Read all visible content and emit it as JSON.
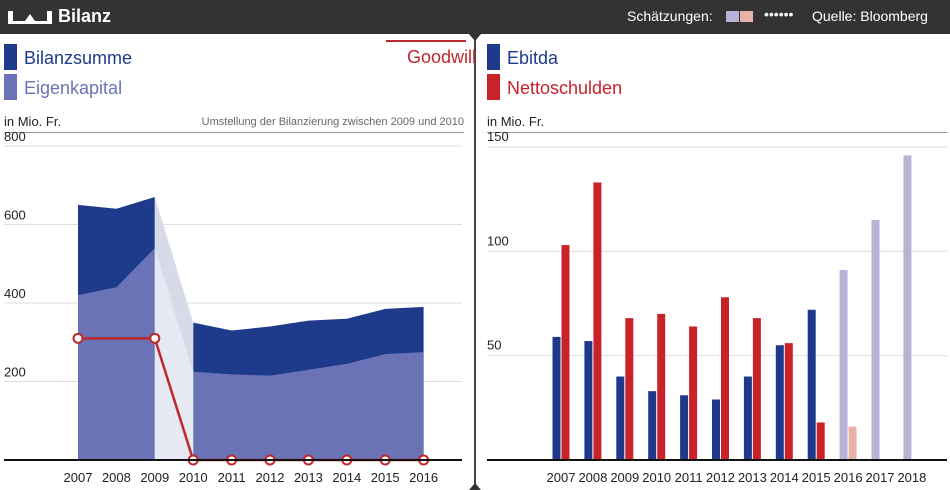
{
  "header": {
    "title": "Bilanz",
    "estimates_label": "Schätzungen:",
    "source": "Quelle: Bloomberg",
    "colors": {
      "background": "#333333",
      "estimate_blue": "#b6b3d9",
      "estimate_red": "#e8b1a9"
    }
  },
  "left_panel": {
    "legend": [
      {
        "label": "Bilanzsumme",
        "color": "#1e3a8a"
      },
      {
        "label": "Eigenkapital",
        "color": "#6a73b5"
      }
    ],
    "goodwill_label": "Goodwill",
    "unit": "in Mio. Fr.",
    "note": "Umstellung der Bilanzierung zwischen 2009 und 2010"
  },
  "right_panel": {
    "legend": [
      {
        "label": "Ebitda",
        "color": "#1e3a8a"
      },
      {
        "label": "Nettoschulden",
        "color": "#c8222a"
      }
    ],
    "unit": "in Mio. Fr."
  },
  "chart_data": [
    {
      "type": "area",
      "x": [
        "2007",
        "2008",
        "2009",
        "2010",
        "2011",
        "2012",
        "2013",
        "2014",
        "2015",
        "2016"
      ],
      "yticks": [
        200,
        400,
        600,
        800
      ],
      "ylim": [
        0,
        800
      ],
      "series": [
        {
          "name": "Bilanzsumme",
          "color": "#1e3a8a",
          "values": [
            650,
            640,
            670,
            350,
            330,
            340,
            355,
            360,
            385,
            390
          ]
        },
        {
          "name": "Eigenkapital",
          "color": "#6a73b5",
          "values": [
            420,
            440,
            540,
            225,
            218,
            215,
            230,
            245,
            270,
            275
          ]
        },
        {
          "name": "Goodwill",
          "type": "line",
          "color": "#c0272d",
          "values": [
            310,
            310,
            310,
            0,
            0,
            0,
            0,
            0,
            0,
            0
          ]
        }
      ]
    },
    {
      "type": "bar",
      "categories": [
        "2007",
        "2008",
        "2009",
        "2010",
        "2011",
        "2012",
        "2013",
        "2014",
        "2015",
        "2016",
        "2017",
        "2018"
      ],
      "yticks": [
        50,
        100,
        150
      ],
      "ylim": [
        0,
        150
      ],
      "series": [
        {
          "name": "Ebitda",
          "color": "#1e3a8a",
          "estimate_color": "#b6b3d9",
          "values": [
            59,
            57,
            40,
            33,
            31,
            29,
            40,
            55,
            72,
            91,
            115,
            146
          ],
          "estimate_from": 2016
        },
        {
          "name": "Nettoschulden",
          "color": "#c8222a",
          "estimate_color": "#e8b1a9",
          "values": [
            103,
            133,
            68,
            70,
            64,
            78,
            68,
            56,
            18,
            16,
            null,
            null
          ],
          "estimate_from": 2016
        }
      ]
    }
  ]
}
